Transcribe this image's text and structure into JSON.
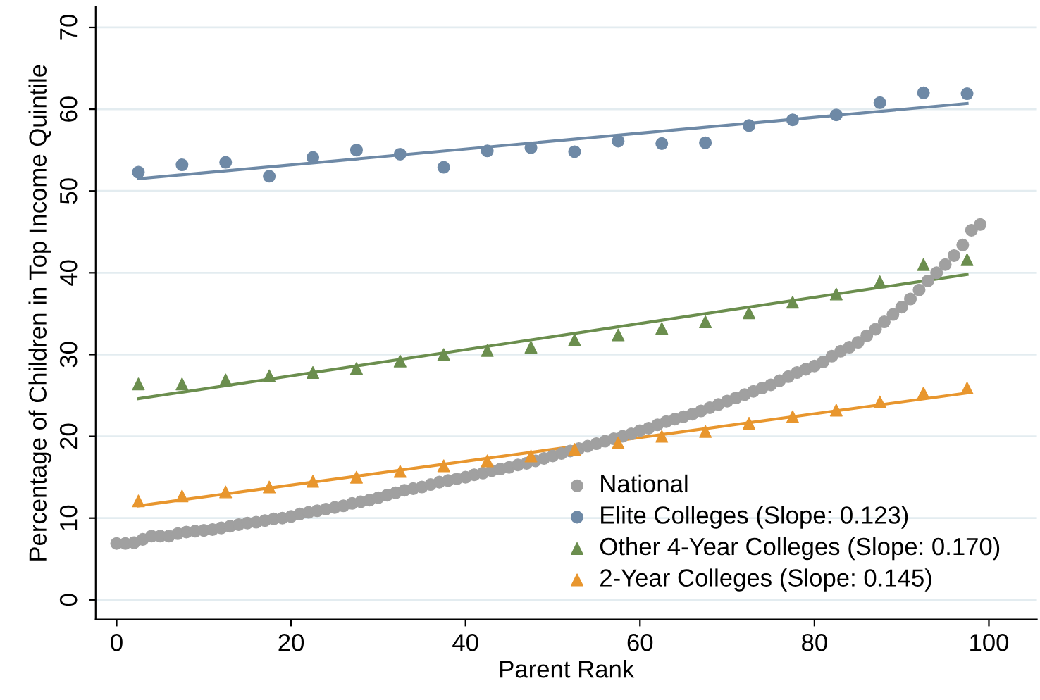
{
  "chart_data": {
    "type": "scatter",
    "xlabel": "Parent Rank",
    "ylabel": "Percentage of Children in Top Income Quintile",
    "xlim": [
      -2.4,
      105.5
    ],
    "ylim": [
      -2.4,
      72.5
    ],
    "xticks": [
      0,
      20,
      40,
      60,
      80,
      100
    ],
    "yticks": [
      0,
      10,
      20,
      30,
      40,
      50,
      60,
      70
    ],
    "grid": "y",
    "legend": "bottom right",
    "series": [
      {
        "name": "National",
        "color": "#a0a0a0",
        "marker": "circle",
        "x": [
          0,
          1,
          2,
          3,
          4,
          5,
          6,
          7,
          8,
          9,
          10,
          11,
          12,
          13,
          14,
          15,
          16,
          17,
          18,
          19,
          20,
          21,
          22,
          23,
          24,
          25,
          26,
          27,
          28,
          29,
          30,
          31,
          32,
          33,
          34,
          35,
          36,
          37,
          38,
          39,
          40,
          41,
          42,
          43,
          44,
          45,
          46,
          47,
          48,
          49,
          50,
          51,
          52,
          53,
          54,
          55,
          56,
          57,
          58,
          59,
          60,
          61,
          62,
          63,
          64,
          65,
          66,
          67,
          68,
          69,
          70,
          71,
          72,
          73,
          74,
          75,
          76,
          77,
          78,
          79,
          80,
          81,
          82,
          83,
          84,
          85,
          86,
          87,
          88,
          89,
          90,
          91,
          92,
          93,
          94,
          95,
          96,
          97,
          98,
          99
        ],
        "values": [
          6.9,
          6.9,
          7.0,
          7.4,
          7.8,
          7.8,
          7.8,
          8.1,
          8.3,
          8.4,
          8.5,
          8.6,
          8.8,
          9.0,
          9.2,
          9.4,
          9.5,
          9.7,
          9.9,
          10.0,
          10.2,
          10.5,
          10.7,
          10.9,
          11.1,
          11.3,
          11.5,
          11.8,
          12.0,
          12.2,
          12.5,
          12.8,
          13.1,
          13.4,
          13.6,
          13.8,
          14.1,
          14.4,
          14.6,
          14.8,
          15.0,
          15.3,
          15.5,
          15.8,
          16.0,
          16.2,
          16.5,
          16.7,
          17.0,
          17.3,
          17.6,
          17.9,
          18.2,
          18.5,
          18.8,
          19.1,
          19.4,
          19.7,
          20.0,
          20.3,
          20.7,
          21.0,
          21.4,
          21.8,
          22.1,
          22.4,
          22.7,
          23.1,
          23.5,
          23.9,
          24.3,
          24.7,
          25.1,
          25.5,
          25.9,
          26.3,
          26.8,
          27.3,
          27.8,
          28.2,
          28.6,
          29.1,
          29.8,
          30.4,
          30.9,
          31.5,
          32.3,
          33.1,
          34.0,
          34.9,
          35.8,
          36.8,
          37.9,
          39.0,
          40.0,
          41.0,
          42.1,
          43.4,
          45.2,
          45.9
        ]
      },
      {
        "name": "Elite Colleges (Slope: 0.123)",
        "color": "#6e89a6",
        "marker": "circle",
        "x": [
          2.5,
          7.5,
          12.5,
          17.5,
          22.5,
          27.5,
          32.5,
          37.5,
          42.5,
          47.5,
          52.5,
          57.5,
          62.5,
          67.5,
          72.5,
          77.5,
          82.5,
          87.5,
          92.5,
          97.5
        ],
        "values": [
          52.3,
          53.2,
          53.5,
          51.8,
          54.1,
          55.0,
          54.5,
          52.9,
          54.9,
          55.3,
          54.8,
          56.1,
          55.8,
          55.9,
          58.0,
          58.7,
          59.3,
          60.8,
          62.0,
          61.9
        ]
      },
      {
        "name": "Other 4-Year Colleges (Slope: 0.170)",
        "color": "#6b8e4e",
        "marker": "triangle",
        "x": [
          2.5,
          7.5,
          12.5,
          17.5,
          22.5,
          27.5,
          32.5,
          37.5,
          42.5,
          47.5,
          52.5,
          57.5,
          62.5,
          67.5,
          72.5,
          77.5,
          82.5,
          87.5,
          92.5,
          97.5
        ],
        "values": [
          26.4,
          26.4,
          26.9,
          27.4,
          27.8,
          28.3,
          29.2,
          30.0,
          30.5,
          30.9,
          31.8,
          32.4,
          33.2,
          34.0,
          35.1,
          36.4,
          37.4,
          38.9,
          41.0,
          41.6
        ]
      },
      {
        "name": "2-Year Colleges (Slope: 0.145)",
        "color": "#e8962e",
        "marker": "triangle",
        "x": [
          2.5,
          7.5,
          12.5,
          17.5,
          22.5,
          27.5,
          32.5,
          37.5,
          42.5,
          47.5,
          52.5,
          57.5,
          62.5,
          67.5,
          72.5,
          77.5,
          82.5,
          87.5,
          92.5,
          97.5
        ],
        "values": [
          12.1,
          12.7,
          13.2,
          13.8,
          14.5,
          15.0,
          15.7,
          16.4,
          17.0,
          17.6,
          18.4,
          19.2,
          20.0,
          20.6,
          21.6,
          22.4,
          23.2,
          24.2,
          25.3,
          25.9
        ]
      },
      {
        "type": "line",
        "color": "#6e89a6",
        "x": [
          2.5,
          97.5
        ],
        "values": [
          51.5,
          60.7
        ]
      },
      {
        "type": "line",
        "color": "#6b8e4e",
        "x": [
          2.5,
          97.5
        ],
        "values": [
          24.6,
          39.8
        ]
      },
      {
        "type": "line",
        "color": "#e8962e",
        "x": [
          2.5,
          97.5
        ],
        "values": [
          11.5,
          25.3
        ]
      }
    ]
  }
}
